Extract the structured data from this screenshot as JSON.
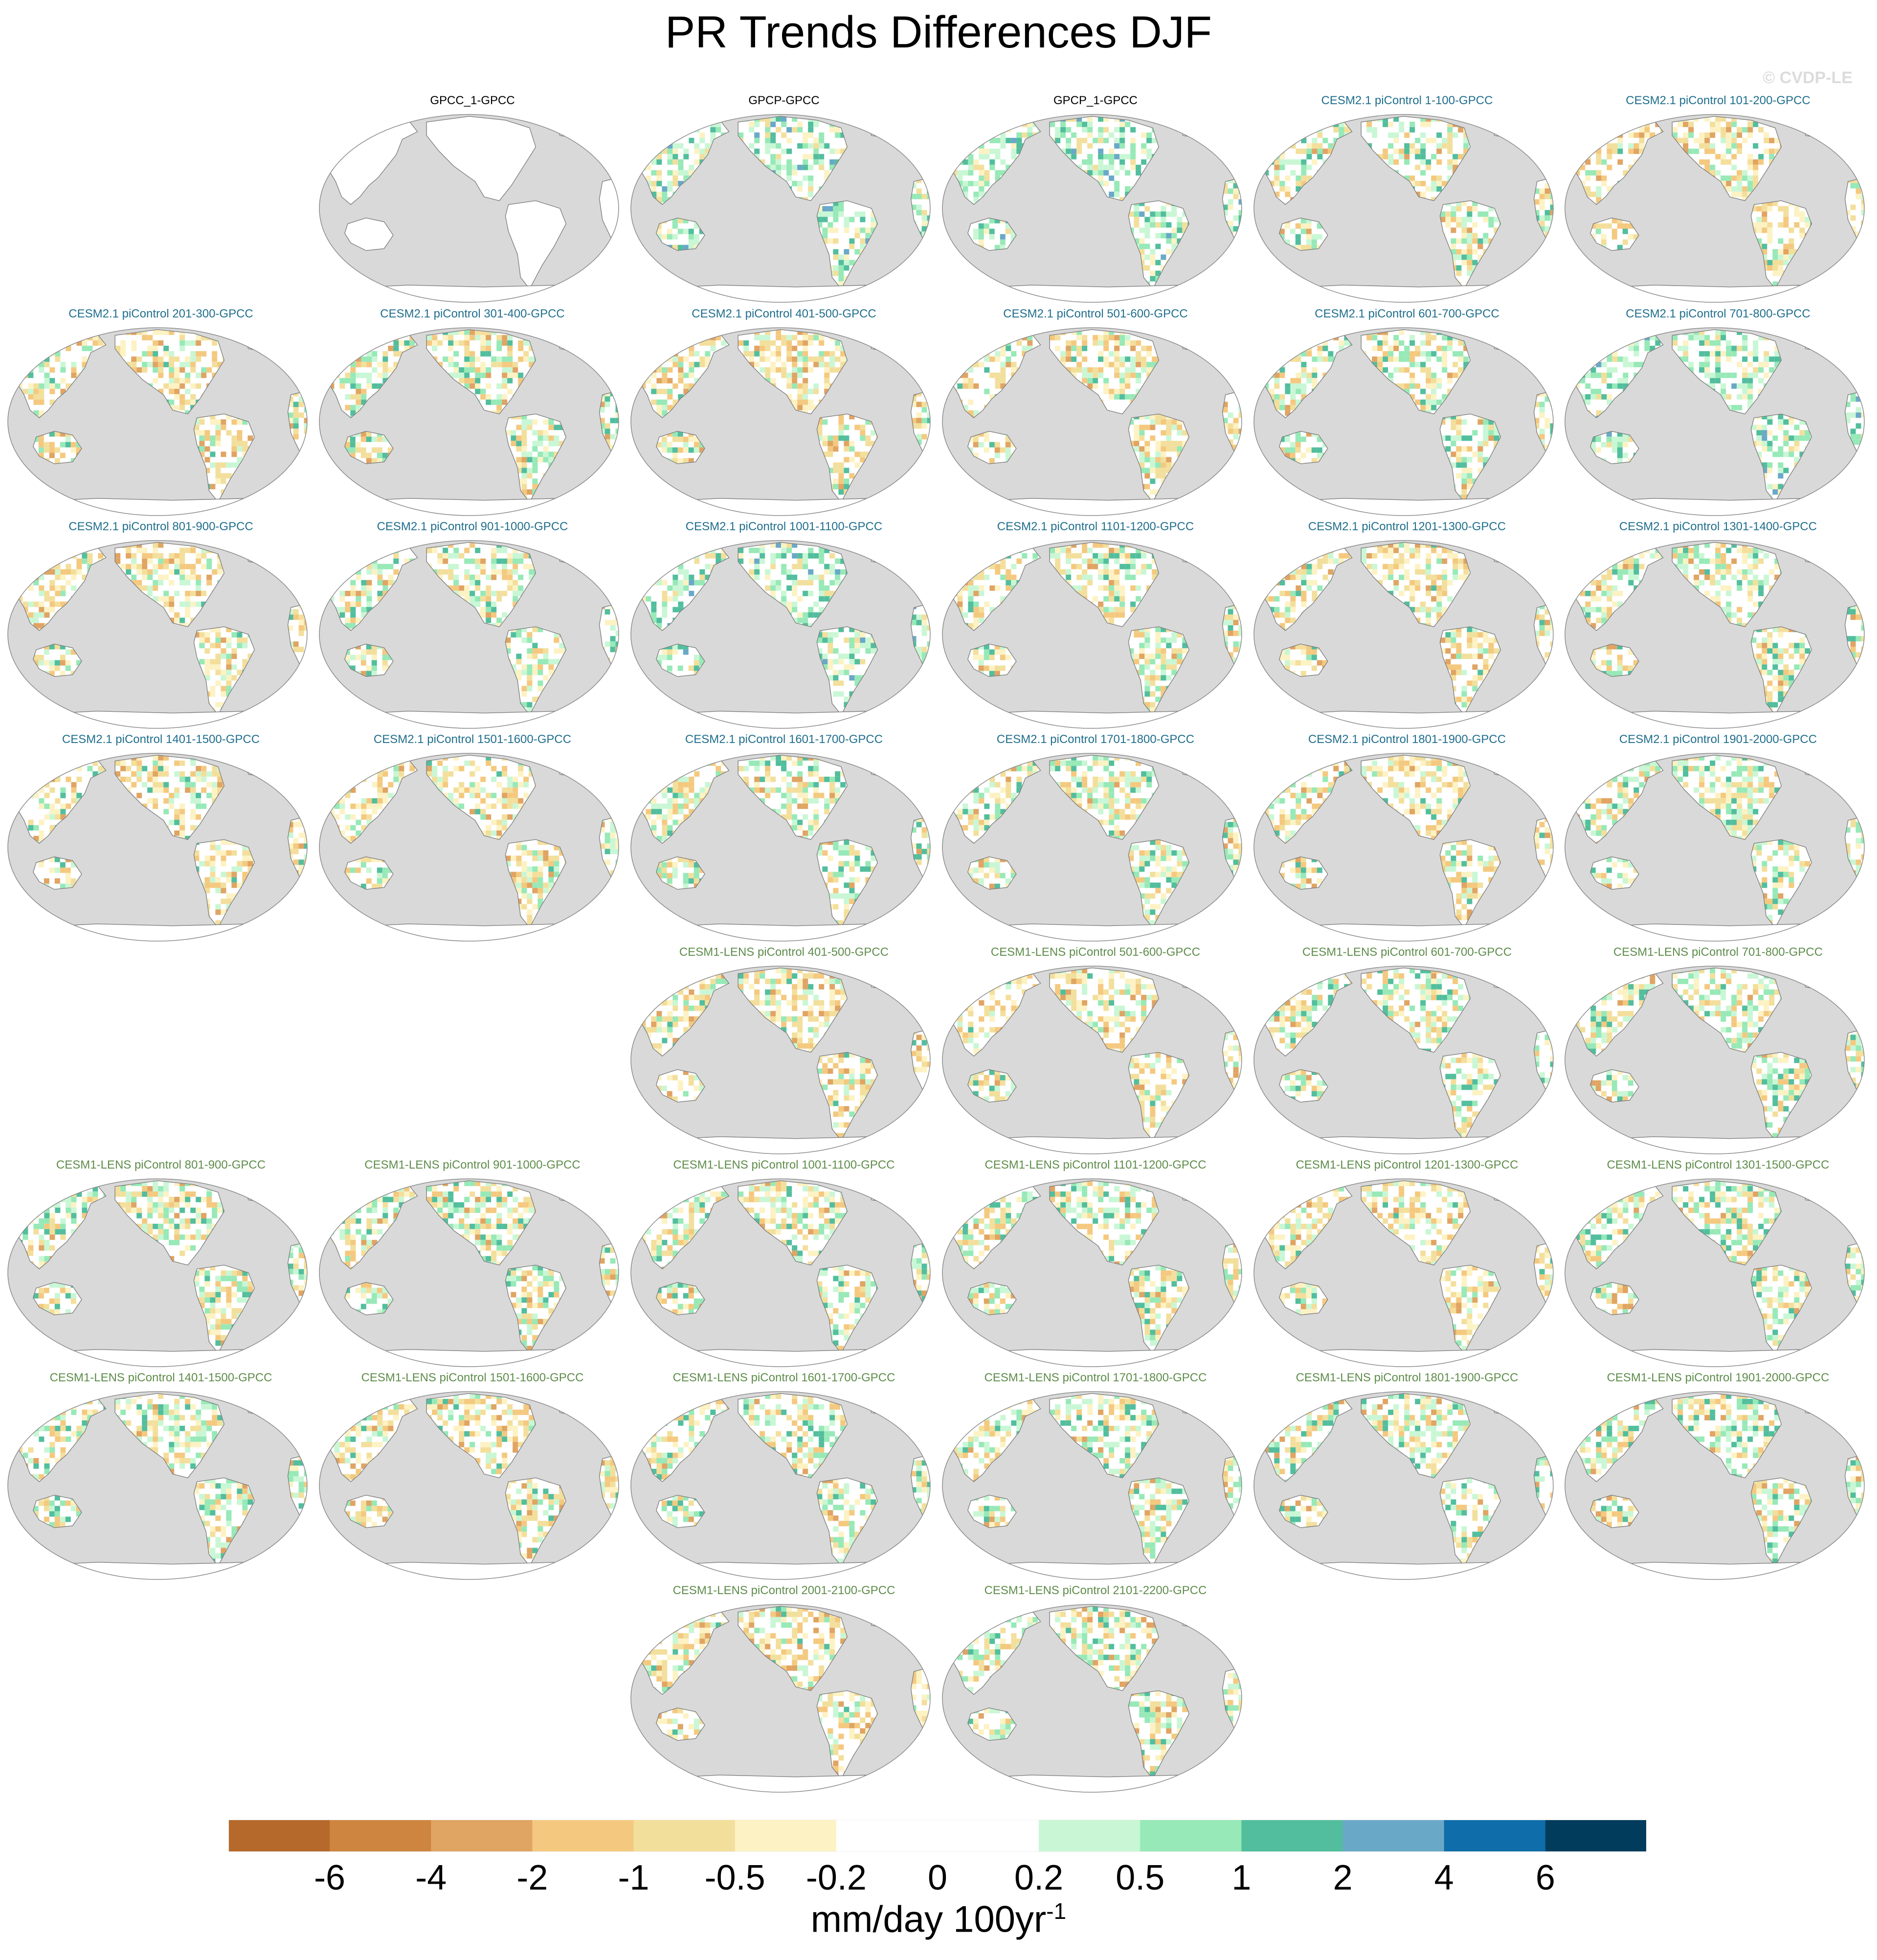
{
  "title": "PR Trends Differences DJF",
  "watermark": "© CVDP-LE",
  "units": {
    "base": "mm/day 100yr",
    "exponent": "-1"
  },
  "colors": {
    "title_obs": "#000000",
    "title_cesm2": "#1f6e8c",
    "title_cesm1": "#5e8c4a",
    "ocean": "#d9d9d9",
    "land_base": "#ffffff",
    "coast": "#7f7f7f"
  },
  "chart_data": {
    "type": "heatmap",
    "title": "PR Trends Differences DJF",
    "projection": "robinson-like, pacific-centered",
    "colorbar": {
      "label": "mm/day 100yr-1",
      "levels": [
        "-6",
        "-4",
        "-2",
        "-1",
        "-0.5",
        "-0.2",
        "0",
        "0.2",
        "0.5",
        "1",
        "2",
        "4",
        "6"
      ],
      "colors": [
        "#b5692b",
        "#cd853f",
        "#e0a463",
        "#f4c97f",
        "#f3df9c",
        "#fdf2c3",
        "#ffffff",
        "#ffffff",
        "#c9f7d5",
        "#97e9b7",
        "#52be9d",
        "#6aa8c8",
        "#0f6ea9",
        "#023c5c"
      ]
    },
    "panels": [
      {
        "row": 0,
        "col": 1,
        "title": "GPCC_1-GPCC",
        "group": "obs",
        "pattern": "blank"
      },
      {
        "row": 0,
        "col": 2,
        "title": "GPCP-GPCC",
        "group": "obs",
        "pattern": "wet"
      },
      {
        "row": 0,
        "col": 3,
        "title": "GPCP_1-GPCC",
        "group": "obs",
        "pattern": "wet"
      },
      {
        "row": 0,
        "col": 4,
        "title": "CESM2.1 piControl 1-100-GPCC",
        "group": "cesm2",
        "pattern": "mixed"
      },
      {
        "row": 0,
        "col": 5,
        "title": "CESM2.1 piControl 101-200-GPCC",
        "group": "cesm2",
        "pattern": "dry"
      },
      {
        "row": 1,
        "col": 0,
        "title": "CESM2.1 piControl 201-300-GPCC",
        "group": "cesm2",
        "pattern": "dry"
      },
      {
        "row": 1,
        "col": 1,
        "title": "CESM2.1 piControl 301-400-GPCC",
        "group": "cesm2",
        "pattern": "mixed"
      },
      {
        "row": 1,
        "col": 2,
        "title": "CESM2.1 piControl 401-500-GPCC",
        "group": "cesm2",
        "pattern": "dry"
      },
      {
        "row": 1,
        "col": 3,
        "title": "CESM2.1 piControl 501-600-GPCC",
        "group": "cesm2",
        "pattern": "dry"
      },
      {
        "row": 1,
        "col": 4,
        "title": "CESM2.1 piControl 601-700-GPCC",
        "group": "cesm2",
        "pattern": "mixed"
      },
      {
        "row": 1,
        "col": 5,
        "title": "CESM2.1 piControl 701-800-GPCC",
        "group": "cesm2",
        "pattern": "wet"
      },
      {
        "row": 2,
        "col": 0,
        "title": "CESM2.1 piControl 801-900-GPCC",
        "group": "cesm2",
        "pattern": "dry"
      },
      {
        "row": 2,
        "col": 1,
        "title": "CESM2.1 piControl 901-1000-GPCC",
        "group": "cesm2",
        "pattern": "mixed"
      },
      {
        "row": 2,
        "col": 2,
        "title": "CESM2.1 piControl 1001-1100-GPCC",
        "group": "cesm2",
        "pattern": "wet"
      },
      {
        "row": 2,
        "col": 3,
        "title": "CESM2.1 piControl 1101-1200-GPCC",
        "group": "cesm2",
        "pattern": "mixed"
      },
      {
        "row": 2,
        "col": 4,
        "title": "CESM2.1 piControl 1201-1300-GPCC",
        "group": "cesm2",
        "pattern": "dry"
      },
      {
        "row": 2,
        "col": 5,
        "title": "CESM2.1 piControl 1301-1400-GPCC",
        "group": "cesm2",
        "pattern": "mixed"
      },
      {
        "row": 3,
        "col": 0,
        "title": "CESM2.1 piControl 1401-1500-GPCC",
        "group": "cesm2",
        "pattern": "dry"
      },
      {
        "row": 3,
        "col": 1,
        "title": "CESM2.1 piControl 1501-1600-GPCC",
        "group": "cesm2",
        "pattern": "dry"
      },
      {
        "row": 3,
        "col": 2,
        "title": "CESM2.1 piControl 1601-1700-GPCC",
        "group": "cesm2",
        "pattern": "mixed"
      },
      {
        "row": 3,
        "col": 3,
        "title": "CESM2.1 piControl 1701-1800-GPCC",
        "group": "cesm2",
        "pattern": "mixed"
      },
      {
        "row": 3,
        "col": 4,
        "title": "CESM2.1 piControl 1801-1900-GPCC",
        "group": "cesm2",
        "pattern": "dry"
      },
      {
        "row": 3,
        "col": 5,
        "title": "CESM2.1 piControl 1901-2000-GPCC",
        "group": "cesm2",
        "pattern": "mixed"
      },
      {
        "row": 4,
        "col": 2,
        "title": "CESM1-LENS piControl 401-500-GPCC",
        "group": "cesm1",
        "pattern": "dry"
      },
      {
        "row": 4,
        "col": 3,
        "title": "CESM1-LENS piControl 501-600-GPCC",
        "group": "cesm1",
        "pattern": "dry"
      },
      {
        "row": 4,
        "col": 4,
        "title": "CESM1-LENS piControl 601-700-GPCC",
        "group": "cesm1",
        "pattern": "mixed"
      },
      {
        "row": 4,
        "col": 5,
        "title": "CESM1-LENS piControl 701-800-GPCC",
        "group": "cesm1",
        "pattern": "mixed"
      },
      {
        "row": 5,
        "col": 0,
        "title": "CESM1-LENS piControl 801-900-GPCC",
        "group": "cesm1",
        "pattern": "mixed"
      },
      {
        "row": 5,
        "col": 1,
        "title": "CESM1-LENS piControl 901-1000-GPCC",
        "group": "cesm1",
        "pattern": "mixed"
      },
      {
        "row": 5,
        "col": 2,
        "title": "CESM1-LENS piControl 1001-1100-GPCC",
        "group": "cesm1",
        "pattern": "mixed"
      },
      {
        "row": 5,
        "col": 3,
        "title": "CESM1-LENS piControl 1101-1200-GPCC",
        "group": "cesm1",
        "pattern": "mixed"
      },
      {
        "row": 5,
        "col": 4,
        "title": "CESM1-LENS piControl 1201-1300-GPCC",
        "group": "cesm1",
        "pattern": "dry"
      },
      {
        "row": 5,
        "col": 5,
        "title": "CESM1-LENS piControl 1301-1500-GPCC",
        "group": "cesm1",
        "pattern": "mixed"
      },
      {
        "row": 6,
        "col": 0,
        "title": "CESM1-LENS piControl 1401-1500-GPCC",
        "group": "cesm1",
        "pattern": "mixed"
      },
      {
        "row": 6,
        "col": 1,
        "title": "CESM1-LENS piControl 1501-1600-GPCC",
        "group": "cesm1",
        "pattern": "dry"
      },
      {
        "row": 6,
        "col": 2,
        "title": "CESM1-LENS piControl 1601-1700-GPCC",
        "group": "cesm1",
        "pattern": "mixed"
      },
      {
        "row": 6,
        "col": 3,
        "title": "CESM1-LENS piControl 1701-1800-GPCC",
        "group": "cesm1",
        "pattern": "mixed"
      },
      {
        "row": 6,
        "col": 4,
        "title": "CESM1-LENS piControl 1801-1900-GPCC",
        "group": "cesm1",
        "pattern": "mixed"
      },
      {
        "row": 6,
        "col": 5,
        "title": "CESM1-LENS piControl 1901-2000-GPCC",
        "group": "cesm1",
        "pattern": "mixed"
      },
      {
        "row": 7,
        "col": 2,
        "title": "CESM1-LENS piControl 2001-2100-GPCC",
        "group": "cesm1",
        "pattern": "dry"
      },
      {
        "row": 7,
        "col": 3,
        "title": "CESM1-LENS piControl 2101-2200-GPCC",
        "group": "cesm1",
        "pattern": "mixed"
      }
    ]
  }
}
